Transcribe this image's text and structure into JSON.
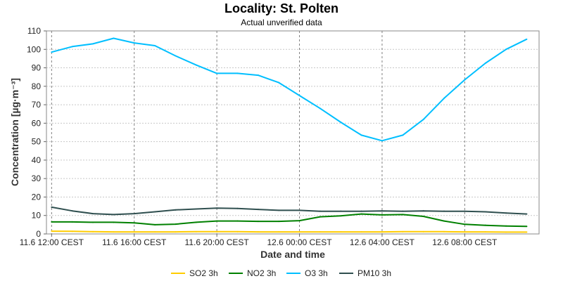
{
  "chart_data": {
    "type": "line",
    "title": "Locality: St. Polten",
    "subtitle": "Actual unverified data",
    "xlabel": "Date and time",
    "ylabel": "Concentration [µg·m⁻³]",
    "ylim": [
      0,
      110
    ],
    "yticks": [
      0,
      10,
      20,
      30,
      40,
      50,
      60,
      70,
      80,
      90,
      100,
      110
    ],
    "xlim": [
      11.75,
      35.6
    ],
    "xticks": [
      {
        "x": 12,
        "label": "11.6 12:00 CEST"
      },
      {
        "x": 16,
        "label": "11.6 16:00 CEST"
      },
      {
        "x": 20,
        "label": "11.6 20:00 CEST"
      },
      {
        "x": 24,
        "label": "12.6 00:00 CEST"
      },
      {
        "x": 28,
        "label": "12.6 04:00 CEST"
      },
      {
        "x": 32,
        "label": "12.6 08:00 CEST"
      }
    ],
    "grid": true,
    "legend_position": "bottom",
    "x": [
      12,
      13,
      14,
      15,
      16,
      17,
      18,
      19,
      20,
      21,
      22,
      23,
      24,
      25,
      26,
      27,
      28,
      29,
      30,
      31,
      32,
      33,
      34,
      35
    ],
    "series": [
      {
        "name": "SO2 3h",
        "color": "#ffcc00",
        "values": [
          1.5,
          1.4,
          1.2,
          1.1,
          1.1,
          1.1,
          1.1,
          1.2,
          1.2,
          1.2,
          1.1,
          1.1,
          1.1,
          1.1,
          1.1,
          1.1,
          1.1,
          1.2,
          1.2,
          1.2,
          1.1,
          1.1,
          1.0,
          1.0
        ]
      },
      {
        "name": "NO2 3h",
        "color": "#008000",
        "values": [
          6.5,
          6.5,
          6.3,
          6.3,
          6.0,
          5.0,
          5.3,
          6.3,
          7.0,
          7.0,
          6.8,
          6.8,
          7.2,
          9.3,
          9.8,
          10.8,
          10.3,
          10.5,
          9.5,
          7.0,
          5.2,
          4.7,
          4.3,
          4.1
        ]
      },
      {
        "name": "O3 3h",
        "color": "#00bfff",
        "values": [
          98.5,
          101.5,
          103.0,
          106.0,
          103.5,
          102.0,
          96.5,
          91.5,
          87.0,
          87.0,
          86.0,
          82.0,
          75.0,
          68.0,
          60.5,
          53.5,
          50.5,
          53.5,
          62.0,
          73.5,
          83.5,
          92.5,
          100.0,
          105.5
        ]
      },
      {
        "name": "PM10 3h",
        "color": "#2f4f4f",
        "values": [
          14.5,
          12.5,
          11.0,
          10.5,
          11.0,
          12.0,
          13.0,
          13.5,
          14.0,
          13.8,
          13.3,
          12.8,
          12.8,
          12.3,
          12.3,
          12.3,
          12.5,
          12.3,
          12.5,
          12.3,
          12.3,
          12.0,
          11.3,
          10.8
        ]
      }
    ]
  }
}
